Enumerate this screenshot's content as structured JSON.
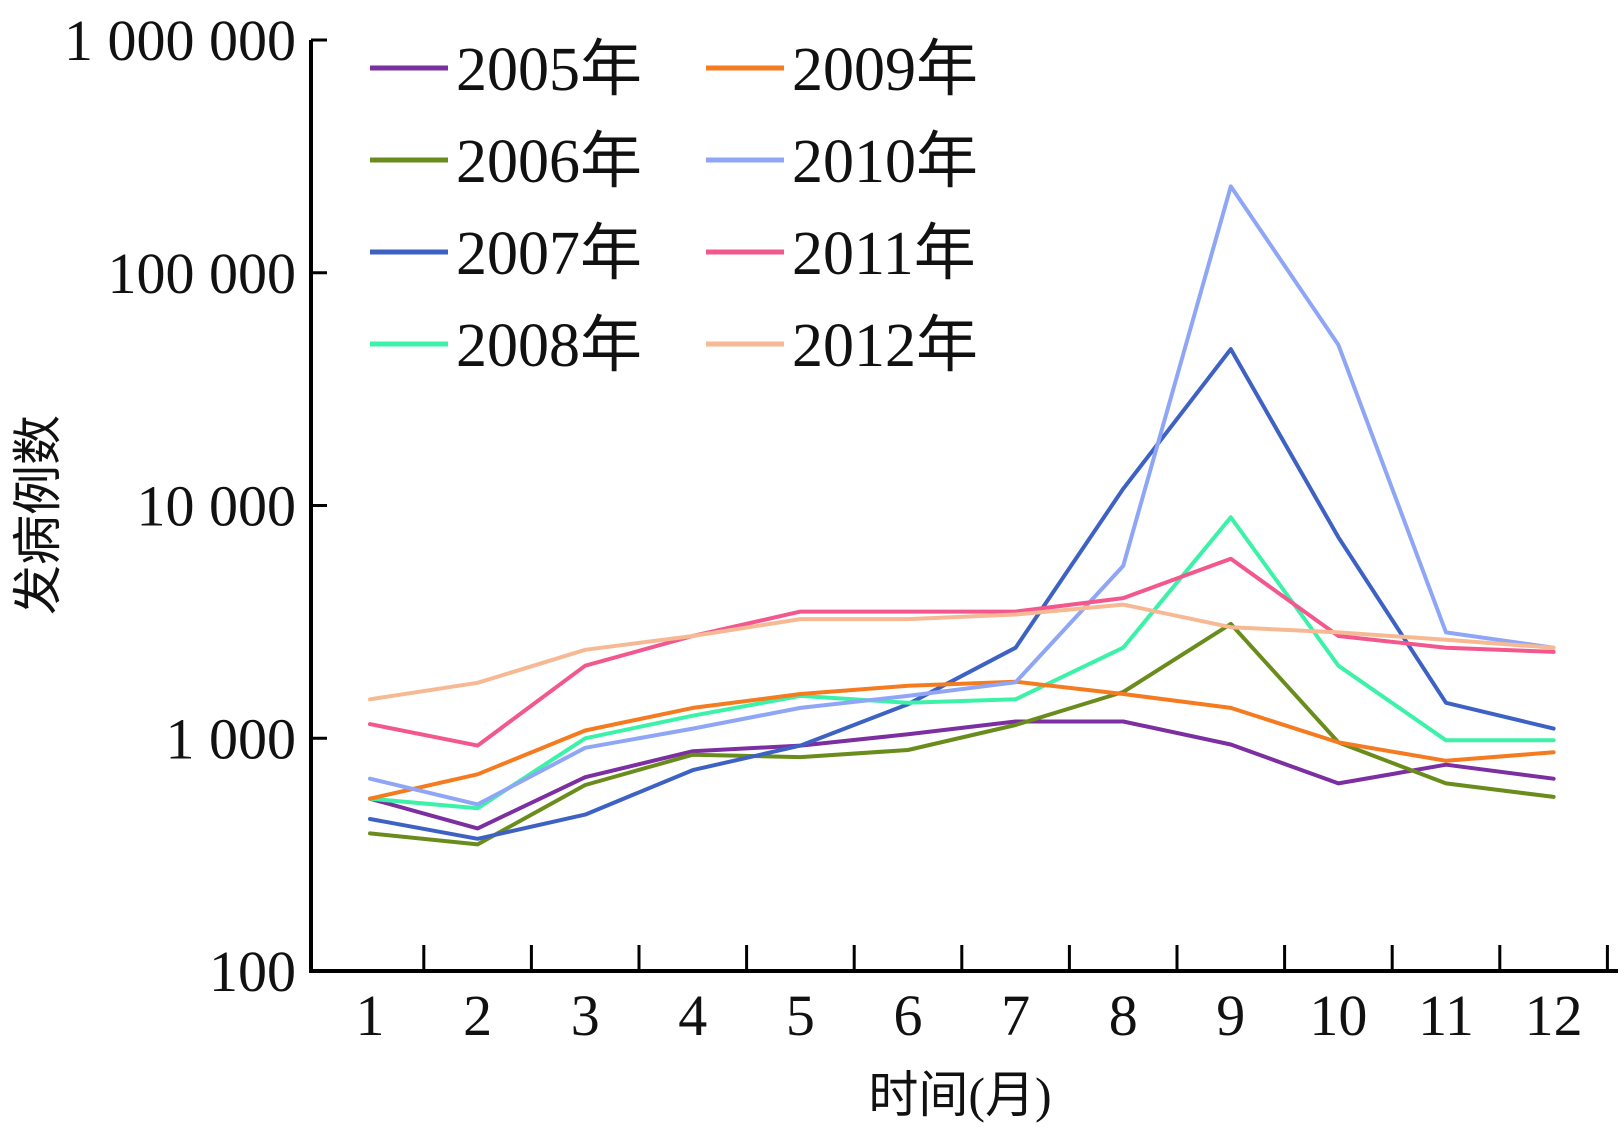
{
  "chart_data": {
    "type": "line",
    "title": "",
    "xlabel": "时间(月)",
    "ylabel": "发病例数",
    "y_scale": "log",
    "ylim": [
      100,
      1000000
    ],
    "y_ticks": [
      100,
      1000,
      10000,
      100000,
      1000000
    ],
    "y_tick_labels": [
      "100",
      "1 000",
      "10 000",
      "100 000",
      "1 000 000"
    ],
    "categories": [
      "1",
      "2",
      "3",
      "4",
      "5",
      "6",
      "7",
      "8",
      "9",
      "10",
      "11",
      "12"
    ],
    "grid": false,
    "legend_position": "top-left",
    "series": [
      {
        "name": "2005年",
        "color": "#7B2FA0",
        "values": [
          550,
          410,
          680,
          880,
          930,
          1040,
          1180,
          1180,
          940,
          640,
          770,
          670
        ]
      },
      {
        "name": "2006年",
        "color": "#6A8C1C",
        "values": [
          390,
          350,
          630,
          850,
          830,
          890,
          1140,
          1580,
          3100,
          960,
          640,
          560
        ]
      },
      {
        "name": "2007年",
        "color": "#3E62C4",
        "values": [
          450,
          370,
          470,
          730,
          930,
          1400,
          2450,
          11800,
          47000,
          7300,
          1420,
          1100
        ]
      },
      {
        "name": "2008年",
        "color": "#3CF2A8",
        "values": [
          550,
          500,
          1000,
          1250,
          1520,
          1420,
          1470,
          2450,
          8900,
          2050,
          980,
          980
        ]
      },
      {
        "name": "2009年",
        "color": "#F47B20",
        "values": [
          550,
          700,
          1080,
          1350,
          1550,
          1680,
          1750,
          1550,
          1350,
          960,
          800,
          870
        ]
      },
      {
        "name": "2010年",
        "color": "#8EA6F5",
        "values": [
          670,
          520,
          910,
          1100,
          1350,
          1520,
          1740,
          5500,
          235000,
          49000,
          2850,
          2450
        ]
      },
      {
        "name": "2011年",
        "color": "#F2588E",
        "values": [
          1150,
          930,
          2050,
          2750,
          3500,
          3500,
          3500,
          4000,
          5900,
          2750,
          2450,
          2350
        ]
      },
      {
        "name": "2012年",
        "color": "#F6B994",
        "values": [
          1470,
          1730,
          2400,
          2750,
          3250,
          3250,
          3400,
          3750,
          3000,
          2850,
          2650,
          2450
        ]
      }
    ]
  }
}
